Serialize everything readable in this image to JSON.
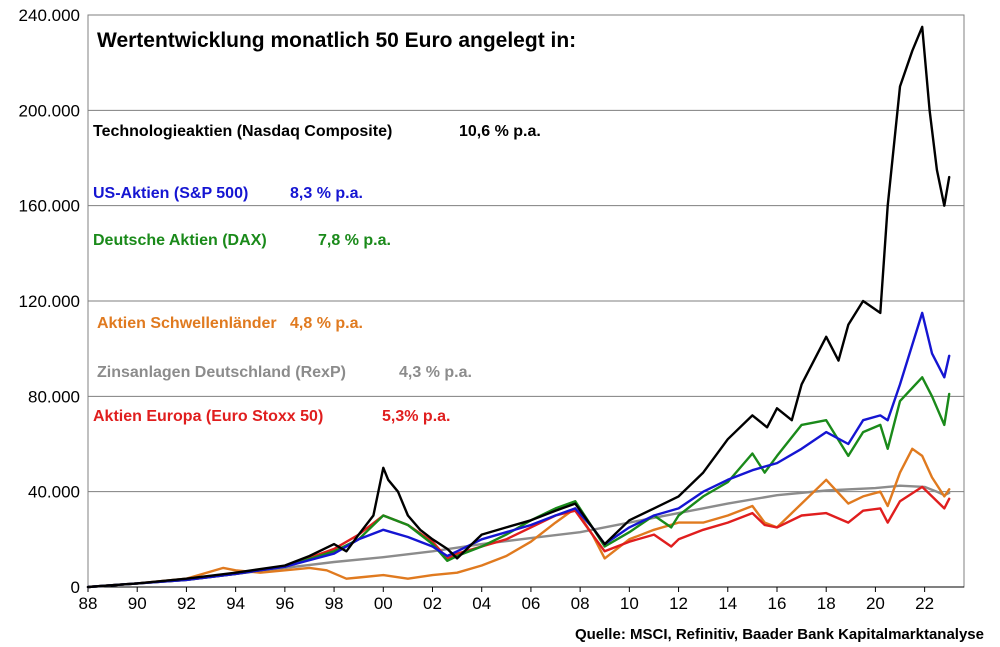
{
  "chart_data": {
    "type": "line",
    "title": "Wertentwicklung monatlich 50 Euro angelegt in:",
    "source": "Quelle: MSCI, Refinitiv, Baader Bank Kapitalmarktanalyse",
    "xlim": [
      1988,
      2023.6
    ],
    "ylim": [
      0,
      240000
    ],
    "x_ticks": [
      1988,
      1990,
      1992,
      1994,
      1996,
      1998,
      2000,
      2002,
      2004,
      2006,
      2008,
      2010,
      2012,
      2014,
      2016,
      2018,
      2020,
      2022
    ],
    "x_tick_labels": [
      "88",
      "90",
      "92",
      "94",
      "96",
      "98",
      "00",
      "02",
      "04",
      "06",
      "08",
      "10",
      "12",
      "14",
      "16",
      "18",
      "20",
      "22"
    ],
    "y_ticks": [
      0,
      40000,
      80000,
      120000,
      160000,
      200000,
      240000
    ],
    "y_tick_labels": [
      "0",
      "40.000",
      "80.000",
      "120.000",
      "160.000",
      "200.000",
      "240.000"
    ],
    "grid": "horizontal",
    "series": [
      {
        "name": "Technologieaktien (Nasdaq Composite)",
        "label": "Technologieaktien (Nasdaq Composite)",
        "return": "10,6 % p.a.",
        "color": "#000000",
        "x": [
          1988,
          1990,
          1992,
          1994,
          1996,
          1997,
          1998,
          1998.5,
          1999,
          1999.6,
          2000,
          2000.2,
          2000.6,
          2001,
          2001.5,
          2002,
          2002.6,
          2003,
          2004,
          2005,
          2006,
          2007,
          2007.8,
          2008.5,
          2009,
          2010,
          2011,
          2012,
          2013,
          2014,
          2015,
          2015.6,
          2016,
          2016.6,
          2017,
          2018,
          2018.5,
          2018.9,
          2019.5,
          2020.2,
          2020.5,
          2021,
          2021.5,
          2021.9,
          2022.2,
          2022.5,
          2022.8,
          2023
        ],
        "y": [
          0,
          1500,
          3500,
          6000,
          9000,
          13000,
          18000,
          15000,
          22000,
          30000,
          50000,
          45000,
          40000,
          30000,
          24000,
          20000,
          16000,
          12000,
          22000,
          25000,
          28000,
          32000,
          35000,
          25000,
          18000,
          28000,
          33000,
          38000,
          48000,
          62000,
          72000,
          67000,
          75000,
          70000,
          85000,
          105000,
          95000,
          110000,
          120000,
          115000,
          160000,
          210000,
          225000,
          235000,
          200000,
          175000,
          160000,
          172000
        ]
      },
      {
        "name": "US-Aktien (S&P 500)",
        "label": "US-Aktien (S&P 500)",
        "return": "8,3 % p.a.",
        "color": "#1515d2",
        "x": [
          1988,
          1990,
          1992,
          1994,
          1996,
          1998,
          1999,
          2000,
          2001,
          2002,
          2002.6,
          2003,
          2004,
          2005,
          2006,
          2007,
          2007.8,
          2008.5,
          2009,
          2010,
          2011,
          2012,
          2013,
          2014,
          2015,
          2016,
          2017,
          2018,
          2018.9,
          2019.5,
          2020.2,
          2020.5,
          2021,
          2021.9,
          2022.3,
          2022.8,
          2023
        ],
        "y": [
          0,
          1500,
          3000,
          5500,
          8500,
          14000,
          20000,
          24000,
          21000,
          17000,
          13000,
          15000,
          20000,
          23000,
          26000,
          30000,
          33000,
          25000,
          18000,
          25000,
          30000,
          33000,
          40000,
          45000,
          49000,
          52000,
          58000,
          65000,
          60000,
          70000,
          72000,
          70000,
          85000,
          115000,
          98000,
          88000,
          97000
        ]
      },
      {
        "name": "Deutsche Aktien (DAX)",
        "label": "Deutsche Aktien (DAX)",
        "return": "7,8 % p.a.",
        "color": "#1a8a1a",
        "x": [
          1988,
          1990,
          1992,
          1994,
          1996,
          1998,
          1999,
          2000,
          2001,
          2002,
          2002.6,
          2003,
          2004,
          2005,
          2006,
          2007,
          2007.8,
          2008.5,
          2009,
          2010,
          2011,
          2011.7,
          2012,
          2013,
          2014,
          2015,
          2015.5,
          2016,
          2017,
          2018,
          2018.9,
          2019.5,
          2020.2,
          2020.5,
          2021,
          2021.9,
          2022.3,
          2022.8,
          2023
        ],
        "y": [
          0,
          1500,
          3000,
          5500,
          8500,
          15000,
          20000,
          30000,
          26000,
          18000,
          11000,
          13000,
          17000,
          22000,
          28000,
          33000,
          36000,
          25000,
          17000,
          23000,
          30000,
          25000,
          30000,
          38000,
          44000,
          56000,
          48000,
          55000,
          68000,
          70000,
          55000,
          65000,
          68000,
          58000,
          78000,
          88000,
          80000,
          68000,
          81000
        ]
      },
      {
        "name": "Aktien Schwellenländer",
        "label": "Aktien Schwellenländer",
        "return": "4,8 % p.a.",
        "color": "#e07a1f",
        "x": [
          1988,
          1990,
          1992,
          1993.5,
          1994,
          1995,
          1996,
          1997,
          1997.7,
          1998.5,
          1999,
          2000,
          2001,
          2002,
          2003,
          2004,
          2005,
          2006,
          2007,
          2007.8,
          2008.5,
          2009,
          2010,
          2011,
          2012,
          2013,
          2014,
          2015,
          2015.5,
          2016,
          2017,
          2018,
          2018.9,
          2019.5,
          2020.2,
          2020.5,
          2021,
          2021.5,
          2021.9,
          2022.3,
          2022.8,
          2023
        ],
        "y": [
          0,
          1500,
          3500,
          8000,
          7000,
          6000,
          7000,
          8000,
          7000,
          3500,
          4000,
          5000,
          3500,
          5000,
          6000,
          9000,
          13000,
          19000,
          27000,
          33000,
          22000,
          12000,
          20000,
          24000,
          27000,
          27000,
          30000,
          34000,
          27000,
          25000,
          35000,
          45000,
          35000,
          38000,
          40000,
          34000,
          48000,
          58000,
          55000,
          46000,
          38000,
          41000
        ]
      },
      {
        "name": "Zinsanlagen Deutschland (RexP)",
        "label": "Zinsanlagen Deutschland (RexP)",
        "return": "4,3 % p.a.",
        "color": "#8c8c8c",
        "x": [
          1988,
          1990,
          1992,
          1994,
          1996,
          1998,
          2000,
          2002,
          2004,
          2006,
          2008,
          2010,
          2012,
          2014,
          2016,
          2018,
          2020,
          2021,
          2022,
          2022.5,
          2022.8,
          2023
        ],
        "y": [
          0,
          1500,
          3500,
          5500,
          8000,
          10500,
          12500,
          15000,
          18000,
          20500,
          23000,
          27000,
          31000,
          35000,
          38500,
          40500,
          41500,
          42500,
          42000,
          40000,
          38500,
          39500
        ]
      },
      {
        "name": "Aktien Europa (Euro Stoxx 50)",
        "label": "Aktien Europa (Euro Stoxx 50)",
        "return": "5,3% p.a.",
        "color": "#e01e1e",
        "x": [
          1988,
          1990,
          1992,
          1994,
          1996,
          1998,
          1999,
          2000,
          2001,
          2002,
          2002.6,
          2003,
          2004,
          2005,
          2006,
          2007,
          2007.8,
          2008.5,
          2009,
          2010,
          2011,
          2011.7,
          2012,
          2013,
          2014,
          2015,
          2015.5,
          2016,
          2017,
          2018,
          2018.9,
          2019.5,
          2020.2,
          2020.5,
          2021,
          2021.9,
          2022.3,
          2022.8,
          2023
        ],
        "y": [
          0,
          1500,
          3000,
          5500,
          8500,
          16000,
          22000,
          30000,
          26000,
          19000,
          12000,
          14000,
          17000,
          20000,
          25000,
          30000,
          32000,
          22000,
          15000,
          19000,
          22000,
          17000,
          20000,
          24000,
          27000,
          31000,
          26000,
          25000,
          30000,
          31000,
          27000,
          32000,
          33000,
          27000,
          36000,
          42000,
          38000,
          33000,
          37000
        ]
      }
    ]
  }
}
